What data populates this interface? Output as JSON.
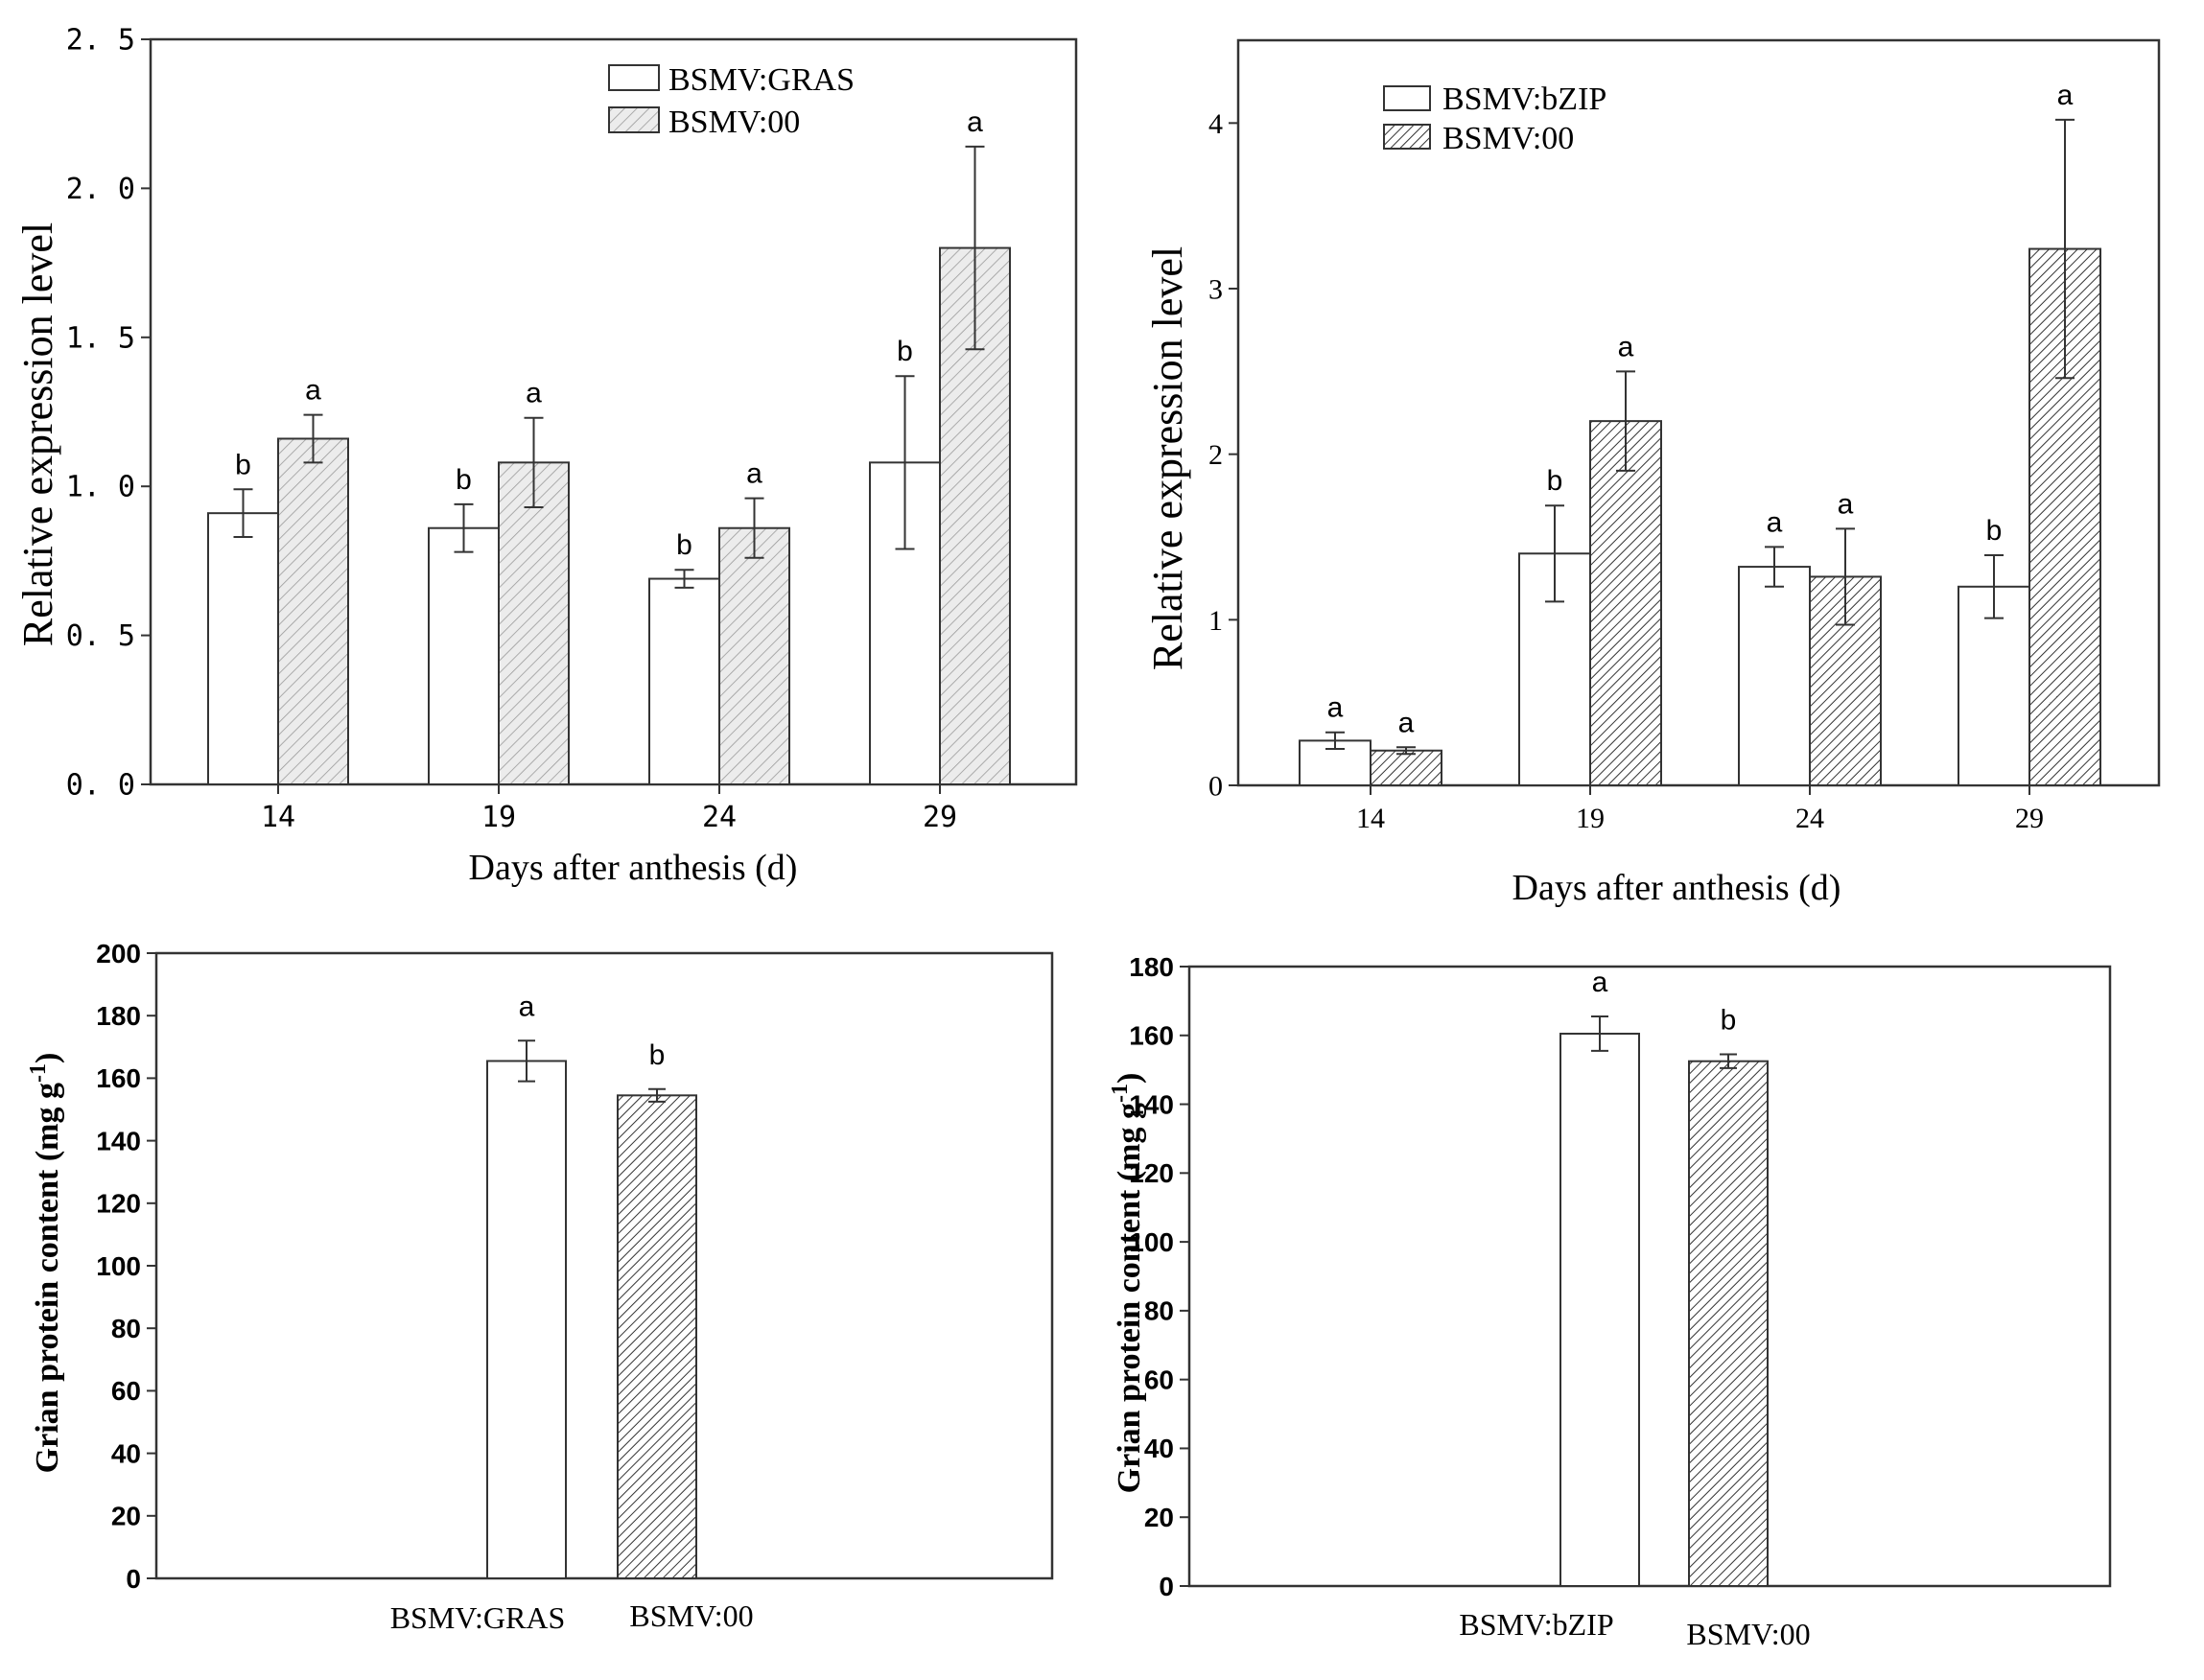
{
  "chart_data": [
    {
      "id": "panel-a",
      "type": "bar",
      "categories": [
        "14",
        "19",
        "24",
        "29"
      ],
      "series": [
        {
          "name": "BSMV:GRAS",
          "pattern": "open",
          "values": [
            0.91,
            0.86,
            0.69,
            1.08
          ],
          "errors": [
            0.08,
            0.08,
            0.03,
            0.29
          ],
          "letters": [
            "b",
            "b",
            "b",
            "b"
          ]
        },
        {
          "name": "BSMV:00",
          "pattern": "hatch-light",
          "values": [
            1.16,
            1.08,
            0.86,
            1.8
          ],
          "errors": [
            0.08,
            0.15,
            0.1,
            0.34
          ],
          "letters": [
            "a",
            "a",
            "a",
            "a"
          ]
        }
      ],
      "xlabel": "Days after anthesis (d)",
      "ylabel": "Relative expression level",
      "ylim": [
        0,
        2.5
      ],
      "yticks": [
        0.0,
        0.5,
        1.0,
        1.5,
        2.0,
        2.5
      ],
      "ytick_labels": [
        "0. 0",
        "0. 5",
        "1. 0",
        "1. 5",
        "2. 0",
        "2. 5"
      ],
      "legend_position": "top-center"
    },
    {
      "id": "panel-b",
      "type": "bar",
      "categories": [
        "14",
        "19",
        "24",
        "29"
      ],
      "series": [
        {
          "name": "BSMV:bZIP",
          "pattern": "open",
          "values": [
            0.27,
            1.4,
            1.32,
            1.2
          ],
          "errors": [
            0.05,
            0.29,
            0.12,
            0.19
          ],
          "letters": [
            "a",
            "b",
            "a",
            "b"
          ]
        },
        {
          "name": "BSMV:00",
          "pattern": "hatch-dense",
          "values": [
            0.21,
            2.2,
            1.26,
            3.24
          ],
          "errors": [
            0.02,
            0.3,
            0.29,
            0.78
          ],
          "letters": [
            "a",
            "a",
            "a",
            "a"
          ]
        }
      ],
      "xlabel": "Days after anthesis (d)",
      "ylabel": "Relative expression level",
      "ylim": [
        0,
        4.5
      ],
      "yticks": [
        0,
        1,
        2,
        3,
        4
      ],
      "ytick_labels": [
        "0",
        "1",
        "2",
        "3",
        "4"
      ],
      "legend_position": "top-left"
    },
    {
      "id": "panel-c",
      "type": "bar",
      "categories": [
        "BSMV:GRAS",
        "BSMV:00"
      ],
      "patterns": [
        "open",
        "hatch-dense"
      ],
      "values": [
        165.5,
        154.5
      ],
      "errors": [
        6.5,
        2.0
      ],
      "letters": [
        "a",
        "b"
      ],
      "xlabel": "",
      "ylabel_main": "Grian protein content (mg g",
      "ylabel_sup": "-1",
      "ylabel_end": ")",
      "ylim": [
        0,
        200
      ],
      "yticks": [
        0,
        20,
        40,
        60,
        80,
        100,
        120,
        140,
        160,
        180,
        200
      ],
      "ytick_labels": [
        "0",
        "20",
        "40",
        "60",
        "80",
        "100",
        "120",
        "140",
        "160",
        "180",
        "200"
      ]
    },
    {
      "id": "panel-d",
      "type": "bar",
      "categories": [
        "BSMV:bZIP",
        "BSMV:00"
      ],
      "patterns": [
        "open",
        "hatch-dense"
      ],
      "values": [
        160.5,
        152.5
      ],
      "errors": [
        5.0,
        2.0
      ],
      "letters": [
        "a",
        "b"
      ],
      "xlabel": "",
      "ylabel_main": "Grian protein content (mg g",
      "ylabel_sup": "-1",
      "ylabel_end": ")",
      "ylim": [
        0,
        180
      ],
      "yticks": [
        0,
        20,
        40,
        60,
        80,
        100,
        120,
        140,
        160,
        180
      ],
      "ytick_labels": [
        "0",
        "20",
        "40",
        "60",
        "80",
        "100",
        "120",
        "140",
        "160",
        "180"
      ]
    }
  ]
}
